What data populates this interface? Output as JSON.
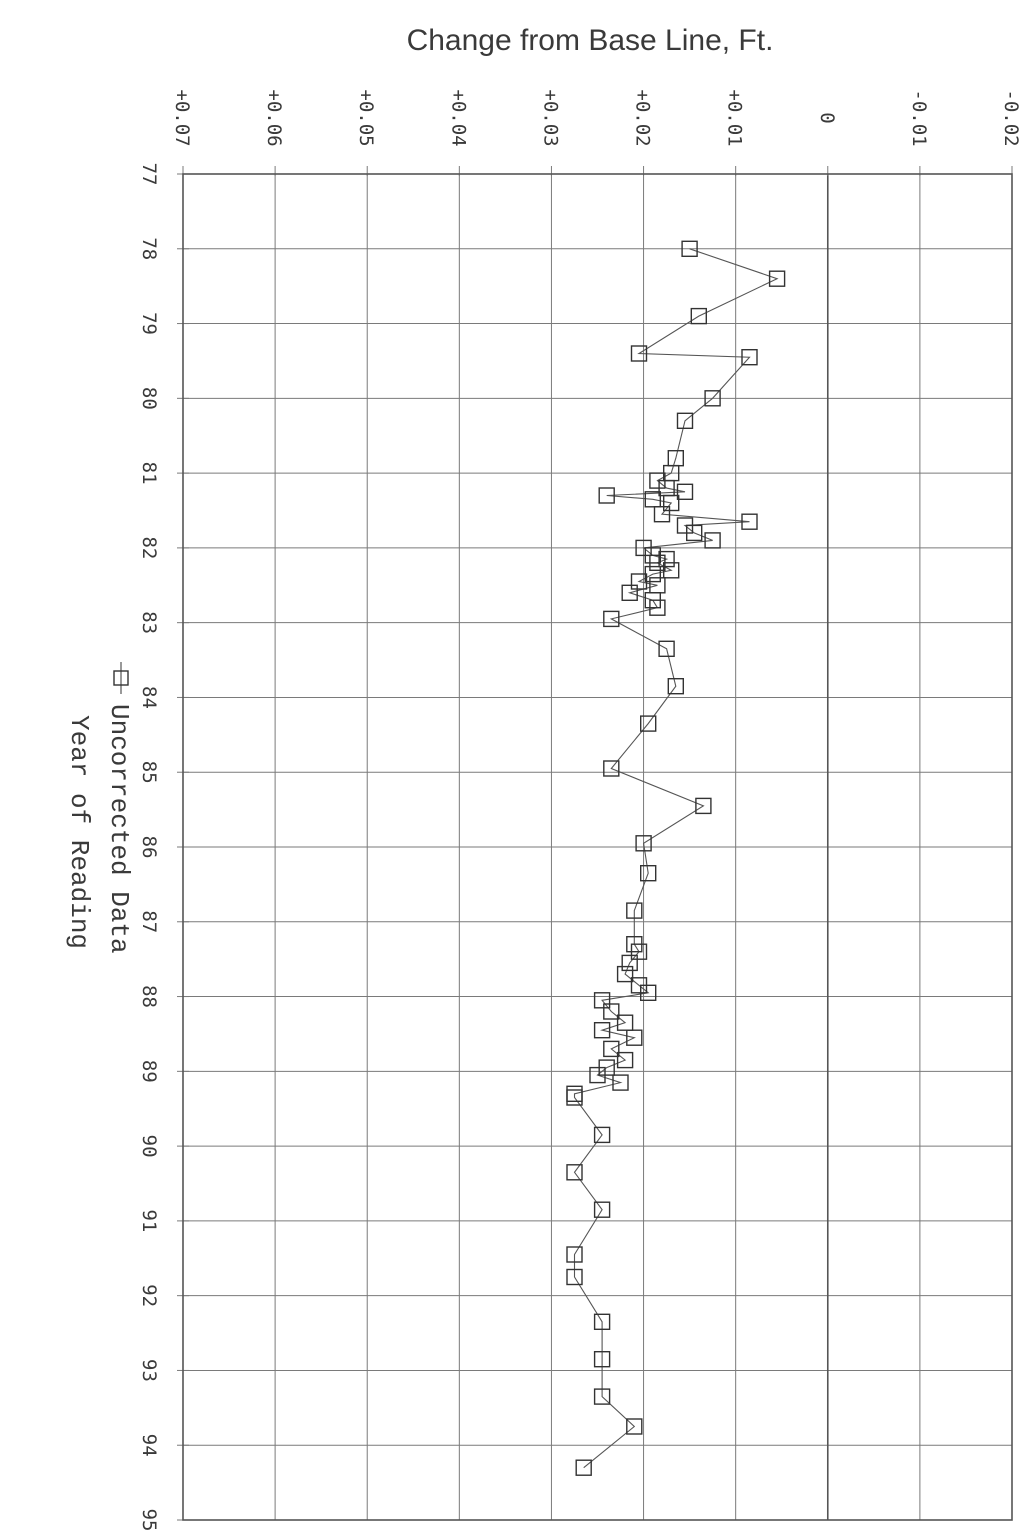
{
  "chart_data": {
    "type": "line",
    "title": "Change from Base Line, Ft.",
    "xlabel": "Year of Reading",
    "ylabel": "Change from Base Line, Ft.",
    "xlim": [
      77,
      95
    ],
    "ylim": [
      -0.02,
      0.07
    ],
    "x_ticks": [
      "77",
      "78",
      "79",
      "80",
      "81",
      "82",
      "83",
      "84",
      "85",
      "86",
      "87",
      "88",
      "89",
      "90",
      "91",
      "92",
      "93",
      "94",
      "95"
    ],
    "y_ticks": [
      {
        "value": 0.07,
        "label": "+0.07"
      },
      {
        "value": 0.06,
        "label": "+0.06"
      },
      {
        "value": 0.05,
        "label": "+0.05"
      },
      {
        "value": 0.04,
        "label": "+0.04"
      },
      {
        "value": 0.03,
        "label": "+0.03"
      },
      {
        "value": 0.02,
        "label": "+0.02"
      },
      {
        "value": 0.01,
        "label": "+0.01"
      },
      {
        "value": 0,
        "label": "0"
      },
      {
        "value": -0.01,
        "label": "-0.01"
      },
      {
        "value": -0.02,
        "label": "-0.02"
      }
    ],
    "grid": true,
    "legend_position": "bottom",
    "series": [
      {
        "name": "Uncorrected Data",
        "color": "#333333",
        "marker": "square",
        "x": [
          78.0,
          78.4,
          78.9,
          79.4,
          79.45,
          80.0,
          80.3,
          80.8,
          81.0,
          81.1,
          81.2,
          81.25,
          81.3,
          81.35,
          81.4,
          81.55,
          81.65,
          81.7,
          81.8,
          81.9,
          82.0,
          82.1,
          82.15,
          82.2,
          82.3,
          82.35,
          82.45,
          82.5,
          82.6,
          82.7,
          82.8,
          82.95,
          83.35,
          83.85,
          84.35,
          84.95,
          85.45,
          85.95,
          86.35,
          86.85,
          87.3,
          87.4,
          87.55,
          87.7,
          87.85,
          87.95,
          88.05,
          88.2,
          88.35,
          88.45,
          88.55,
          88.7,
          88.85,
          88.95,
          89.05,
          89.15,
          89.3,
          89.35,
          89.85,
          90.35,
          90.85,
          91.45,
          91.75,
          92.35,
          92.85,
          93.35,
          93.75,
          94.3
        ],
        "y": [
          0.015,
          0.0055,
          0.014,
          0.0205,
          0.0085,
          0.0125,
          0.0155,
          0.0165,
          0.017,
          0.0185,
          0.0175,
          0.0155,
          0.024,
          0.019,
          0.017,
          0.018,
          0.0085,
          0.0155,
          0.0145,
          0.0125,
          0.02,
          0.019,
          0.0175,
          0.0185,
          0.017,
          0.019,
          0.0205,
          0.0185,
          0.0215,
          0.019,
          0.0185,
          0.0235,
          0.0175,
          0.0165,
          0.0195,
          0.0235,
          0.0135,
          0.02,
          0.0195,
          0.021,
          0.021,
          0.0205,
          0.0215,
          0.022,
          0.0205,
          0.0195,
          0.0245,
          0.0235,
          0.022,
          0.0245,
          0.021,
          0.0235,
          0.022,
          0.024,
          0.025,
          0.0225,
          0.0275,
          0.0275,
          0.0245,
          0.0275,
          0.0245,
          0.0275,
          0.0275,
          0.0245,
          0.0245,
          0.0245,
          0.021,
          0.0265
        ]
      }
    ]
  }
}
